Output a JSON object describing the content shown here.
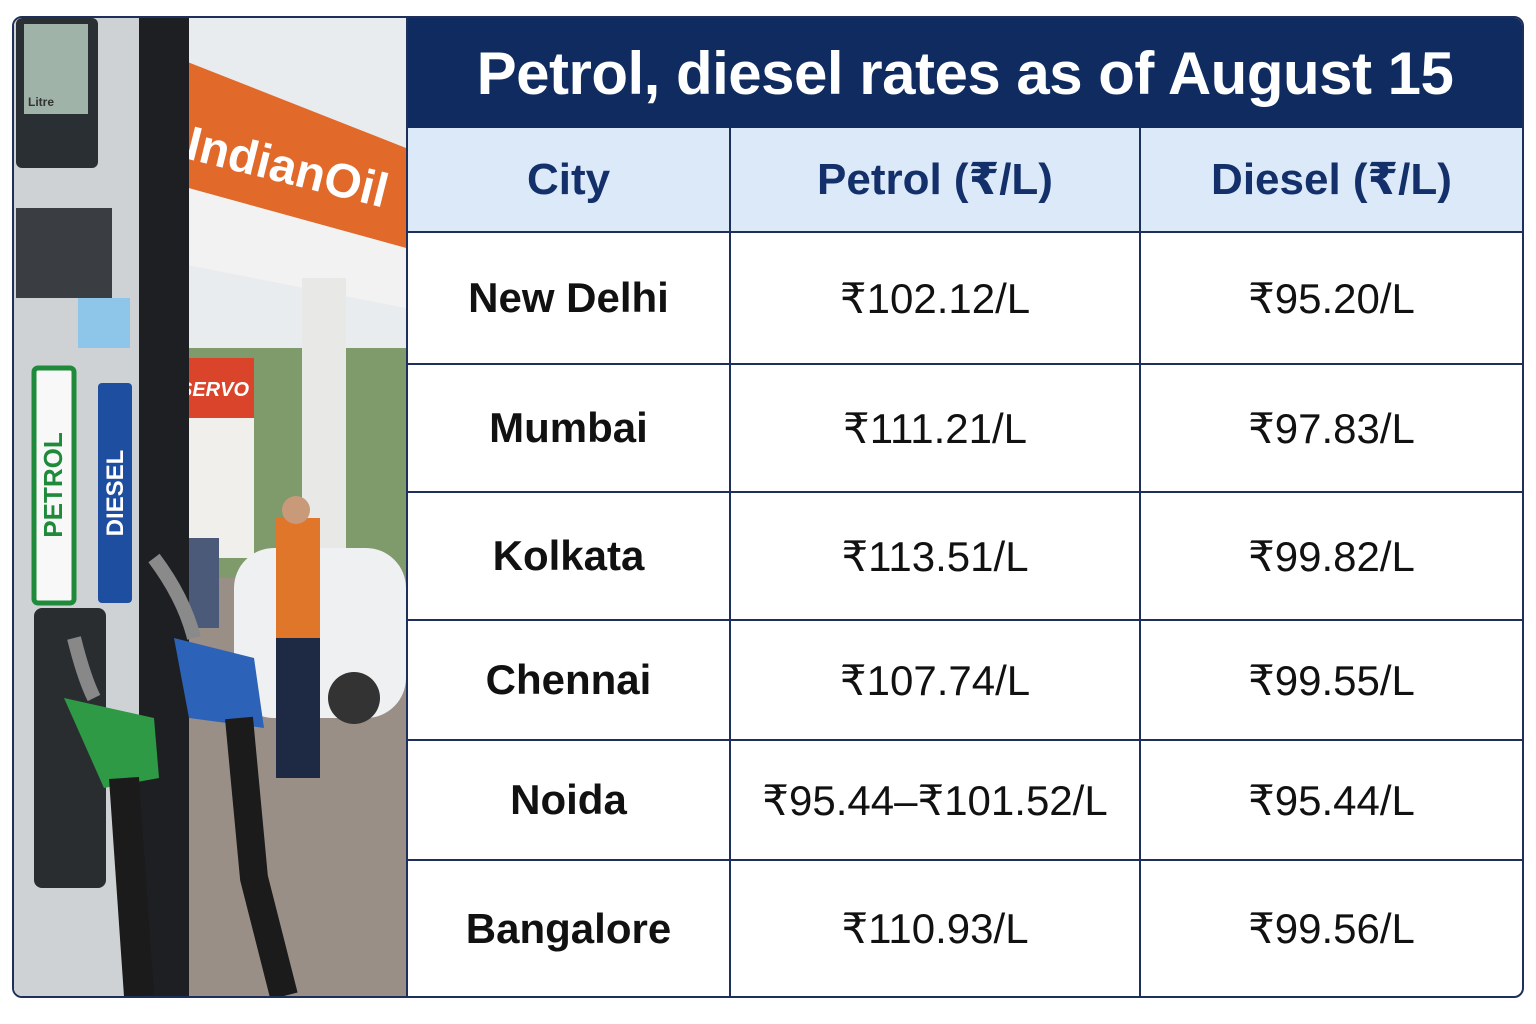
{
  "title": "Petrol, diesel rates as of August 15",
  "photo": {
    "brand_sign": "IndianOil",
    "side_sign": "SERVO",
    "meter_label": "Litre",
    "pump_labels": [
      "PETROL",
      "DIESEL"
    ]
  },
  "table": {
    "header": [
      "City",
      "Petrol (₹/L)",
      "Diesel (₹/L)"
    ],
    "rows": [
      [
        "New Delhi",
        "₹102.12/L",
        "₹95.20/L"
      ],
      [
        "Mumbai",
        "₹111.21/L",
        "₹97.83/L"
      ],
      [
        "Kolkata",
        "₹113.51/L",
        "₹99.82/L"
      ],
      [
        "Chennai",
        "₹107.74/L",
        "₹99.55/L"
      ],
      [
        "Noida",
        "₹95.44–₹101.52/L",
        "₹95.44/L"
      ],
      [
        "Bangalore",
        "₹110.93/L",
        "₹99.56/L"
      ]
    ]
  }
}
